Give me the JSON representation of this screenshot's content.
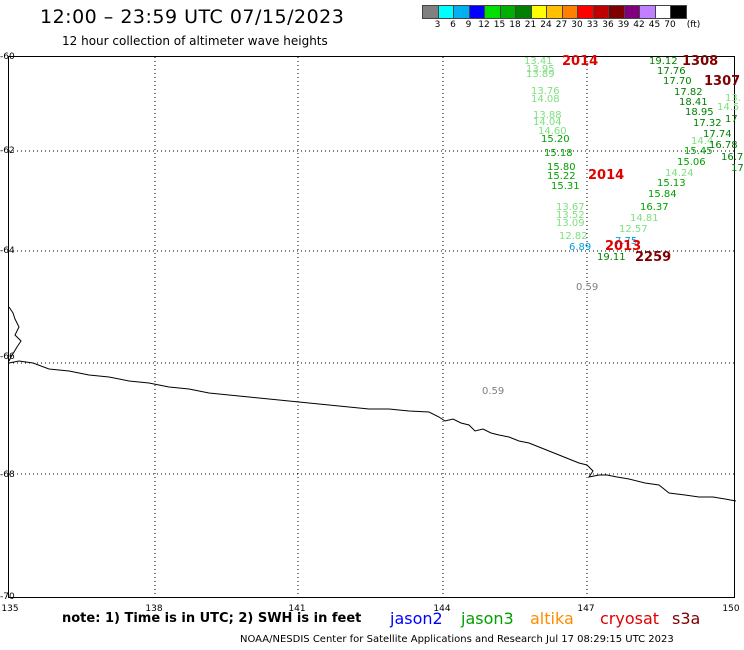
{
  "header": {
    "title": "12:00 – 23:59 UTC 07/15/2023",
    "subtitle": "12 hour collection of altimeter wave heights"
  },
  "colorbar": {
    "unit": "(ft)",
    "ticks": [
      "3",
      "6",
      "9",
      "12",
      "15",
      "18",
      "21",
      "24",
      "27",
      "30",
      "33",
      "36",
      "39",
      "42",
      "45",
      "70"
    ],
    "colors": [
      "#808080",
      "#00ffff",
      "#00b0f0",
      "#0000ff",
      "#00e000",
      "#00b000",
      "#008000",
      "#ffff00",
      "#ffc000",
      "#ff8000",
      "#ff0000",
      "#c00000",
      "#800000",
      "#800080",
      "#c080ff",
      "#ffffff",
      "#000000"
    ]
  },
  "axes": {
    "lat_labels": [
      "-60",
      "-62",
      "-64",
      "-66",
      "-68",
      "-70"
    ],
    "lon_labels": [
      "135",
      "138",
      "141",
      "144",
      "147",
      "150"
    ]
  },
  "observations": [
    {
      "text": "13.41",
      "color": "#7fe07f"
    },
    {
      "text": "13.95",
      "color": "#7fe07f"
    },
    {
      "text": "13.89",
      "color": "#7fe07f"
    },
    {
      "text": "13.76",
      "color": "#7fe07f"
    },
    {
      "text": "14.08",
      "color": "#7fe07f"
    },
    {
      "text": "13.88",
      "color": "#7fe07f"
    },
    {
      "text": "14.04",
      "color": "#7fe07f"
    },
    {
      "text": "14.60",
      "color": "#7fe07f"
    },
    {
      "text": "15.20",
      "color": "#00a000"
    },
    {
      "text": "15.18",
      "color": "#00a000"
    },
    {
      "text": "15.80",
      "color": "#00a000"
    },
    {
      "text": "15.22",
      "color": "#00a000"
    },
    {
      "text": "15.31",
      "color": "#00a000"
    },
    {
      "text": "13.67",
      "color": "#7fe07f"
    },
    {
      "text": "13.52",
      "color": "#7fe07f"
    },
    {
      "text": "13.09",
      "color": "#7fe07f"
    },
    {
      "text": "12.82",
      "color": "#7fe07f"
    },
    {
      "text": "6.89",
      "color": "#00a0e0"
    },
    {
      "text": "7.75",
      "color": "#00a0e0"
    },
    {
      "text": "19.11",
      "color": "#008000"
    },
    {
      "text": "0.59",
      "color": "#808080"
    },
    {
      "text": "0.59",
      "color": "#808080"
    },
    {
      "text": "19.12",
      "color": "#008000"
    },
    {
      "text": "17.76",
      "color": "#008000"
    },
    {
      "text": "17.70",
      "color": "#008000"
    },
    {
      "text": "17.82",
      "color": "#008000"
    },
    {
      "text": "18.41",
      "color": "#008000"
    },
    {
      "text": "18.95",
      "color": "#008000"
    },
    {
      "text": "17.32",
      "color": "#008000"
    },
    {
      "text": "17.74",
      "color": "#008000"
    },
    {
      "text": "14.4",
      "color": "#7fe07f"
    },
    {
      "text": "15.45",
      "color": "#00a000"
    },
    {
      "text": "16.78",
      "color": "#008000"
    },
    {
      "text": "15.06",
      "color": "#00a000"
    },
    {
      "text": "14.24",
      "color": "#7fe07f"
    },
    {
      "text": "15.13",
      "color": "#00a000"
    },
    {
      "text": "15.84",
      "color": "#00a000"
    },
    {
      "text": "16.37",
      "color": "#00a000"
    },
    {
      "text": "14.81",
      "color": "#7fe07f"
    },
    {
      "text": "12.57",
      "color": "#7fe07f"
    },
    {
      "text": "13.",
      "color": "#7fe07f"
    },
    {
      "text": "14.5",
      "color": "#7fe07f"
    },
    {
      "text": "17",
      "color": "#008000"
    },
    {
      "text": "16.7",
      "color": "#008000"
    },
    {
      "text": "17",
      "color": "#008000"
    }
  ],
  "times": [
    {
      "text": "2014",
      "color": "#e00000"
    },
    {
      "text": "2014",
      "color": "#e00000"
    },
    {
      "text": "2013",
      "color": "#e00000"
    },
    {
      "text": "2259",
      "color": "#800000"
    },
    {
      "text": "1308",
      "color": "#800000"
    },
    {
      "text": "1307",
      "color": "#800000"
    }
  ],
  "footer": {
    "note": "note: 1) Time is in UTC; 2) SWH is in feet",
    "satellites": [
      {
        "name": "jason2",
        "color": "#0000ff"
      },
      {
        "name": "jason3",
        "color": "#00a000"
      },
      {
        "name": "altika",
        "color": "#ff8c00"
      },
      {
        "name": "cryosat",
        "color": "#e00000"
      },
      {
        "name": "s3a",
        "color": "#800000"
      }
    ],
    "credit": "NOAA/NESDIS Center for Satellite Applications and Research    Jul 17 08:29:15 UTC 2023"
  }
}
